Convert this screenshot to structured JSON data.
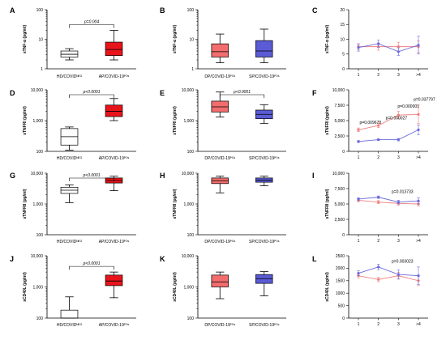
{
  "colors": {
    "hd": "#ffffff",
    "ap": "#e8141b",
    "dp": "#f26d6d",
    "sp": "#5b5bd6",
    "dp_line": "#f08080",
    "sp_line": "#6a6ae0"
  },
  "chart_data": [
    {
      "id": "A",
      "type": "box",
      "ylabel": "sTNF-α (pg/ml)",
      "yscale": "log",
      "ylim": [
        1,
        100
      ],
      "yticks": [
        1,
        10,
        100
      ],
      "ytick_labels": [
        "1",
        "10",
        "100"
      ],
      "categories": [
        "HD/COVIDᴺᴱᴳ",
        "AP/COVID-19ᴾᴼˢ"
      ],
      "boxes": [
        {
          "min": 2.0,
          "q1": 2.5,
          "median": 3.1,
          "q3": 4.0,
          "max": 4.8,
          "color_key": "hd"
        },
        {
          "min": 2.0,
          "q1": 2.8,
          "median": 4.5,
          "q3": 8.0,
          "max": 20.0,
          "color_key": "ap"
        }
      ],
      "bracket": {
        "label": "p=0.004"
      }
    },
    {
      "id": "B",
      "type": "box",
      "ylabel": "sTNF-α (pg/ml)",
      "yscale": "log",
      "ylim": [
        1,
        100
      ],
      "yticks": [
        1,
        10,
        100
      ],
      "ytick_labels": [
        "1",
        "10",
        "100"
      ],
      "categories": [
        "DP/COVID-19ᴾᴼˢ",
        "SP/COVID-19ᴾᴼˢ"
      ],
      "boxes": [
        {
          "min": 1.6,
          "q1": 2.5,
          "median": 3.8,
          "q3": 7.0,
          "max": 15.0,
          "color_key": "dp"
        },
        {
          "min": 1.6,
          "q1": 2.5,
          "median": 4.0,
          "q3": 9.0,
          "max": 22.0,
          "color_key": "sp"
        }
      ]
    },
    {
      "id": "C",
      "type": "line",
      "ylabel": "sTNF-α (pg/ml)",
      "yscale": "linear",
      "ylim": [
        0,
        20
      ],
      "yticks": [
        0,
        5,
        10,
        15,
        20
      ],
      "ytick_labels": [
        "0",
        "5",
        "10",
        "15",
        "20"
      ],
      "categories": [
        "1",
        "2",
        "3",
        ">4"
      ],
      "series": [
        {
          "values": [
            7.5,
            7.5,
            7.5,
            7.5
          ],
          "err": [
            1.0,
            1.2,
            1.5,
            2.0
          ],
          "color_key": "dp_line"
        },
        {
          "values": [
            7.2,
            8.5,
            5.8,
            8.0
          ],
          "err": [
            1.2,
            1.2,
            1.3,
            3.0
          ],
          "color_key": "sp_line"
        }
      ],
      "annotations": []
    },
    {
      "id": "D",
      "type": "box",
      "ylabel": "sTNFRI (pg/ml)",
      "yscale": "log",
      "ylim": [
        100,
        10000
      ],
      "yticks": [
        100,
        1000,
        10000
      ],
      "ytick_labels": [
        "100",
        "1,000",
        "10,000"
      ],
      "categories": [
        "HD/COVIDᴺᴱᴳ",
        "AP/COVID-19ᴾᴼˢ"
      ],
      "boxes": [
        {
          "min": 110,
          "q1": 160,
          "median": 300,
          "q3": 550,
          "max": 620,
          "color_key": "hd"
        },
        {
          "min": 1000,
          "q1": 1350,
          "median": 2000,
          "q3": 3200,
          "max": 5200,
          "color_key": "ap"
        }
      ],
      "bracket": {
        "label": "p<0.0001"
      }
    },
    {
      "id": "E",
      "type": "box",
      "ylabel": "sTNFRI (pg/ml)",
      "yscale": "log",
      "ylim": [
        100,
        10000
      ],
      "yticks": [
        100,
        1000,
        10000
      ],
      "ytick_labels": [
        "100",
        "1,000",
        "10,000"
      ],
      "categories": [
        "DP/COVID-19ᴾᴼˢ",
        "SP/COVID-19ᴾᴼˢ"
      ],
      "boxes": [
        {
          "min": 1300,
          "q1": 1900,
          "median": 2800,
          "q3": 4300,
          "max": 8500,
          "color_key": "dp"
        },
        {
          "min": 800,
          "q1": 1150,
          "median": 1600,
          "q3": 2200,
          "max": 3300,
          "color_key": "sp"
        }
      ],
      "bracket": {
        "label": "p<0.0001"
      }
    },
    {
      "id": "F",
      "type": "line",
      "ylabel": "sTNFRI (pg/ml)",
      "yscale": "linear",
      "ylim": [
        0,
        10000
      ],
      "yticks": [
        0,
        2500,
        5000,
        7500,
        10000
      ],
      "ytick_labels": [
        "0",
        "2,500",
        "5,000",
        "7,500",
        "10,000"
      ],
      "categories": [
        "1",
        "2",
        "3",
        ">4"
      ],
      "series": [
        {
          "values": [
            3500,
            4200,
            5900,
            6000
          ],
          "err": [
            300,
            350,
            600,
            1500
          ],
          "color_key": "dp_line"
        },
        {
          "values": [
            1600,
            1900,
            1900,
            3500
          ],
          "err": [
            150,
            150,
            200,
            800
          ],
          "color_key": "sp_line"
        }
      ],
      "annotations": [
        {
          "text": "p=0.009678",
          "x": 0.6,
          "y": 4500
        },
        {
          "text": "p=0.000027",
          "x": 1.9,
          "y": 5200
        },
        {
          "text": "p=0.000001",
          "x": 2.5,
          "y": 7100
        },
        {
          "text": "p=0.037797",
          "x": 3.3,
          "y": 8200
        }
      ]
    },
    {
      "id": "G",
      "type": "box",
      "ylabel": "sTNFRII (pg/ml)",
      "yscale": "log",
      "ylim": [
        100,
        10000
      ],
      "yticks": [
        100,
        1000,
        10000
      ],
      "ytick_labels": [
        "100",
        "1,000",
        "10,000"
      ],
      "categories": [
        "HD/COVIDᴺᴱᴳ",
        "AP/COVID-19ᴾᴼˢ"
      ],
      "boxes": [
        {
          "min": 1100,
          "q1": 2200,
          "median": 2800,
          "q3": 3500,
          "max": 4200,
          "color_key": "hd"
        },
        {
          "min": 2700,
          "q1": 4800,
          "median": 5800,
          "q3": 7000,
          "max": 8000,
          "color_key": "ap"
        }
      ],
      "bracket": {
        "label": "p<0.0001"
      }
    },
    {
      "id": "H",
      "type": "box",
      "ylabel": "sTNFRII (pg/ml)",
      "yscale": "log",
      "ylim": [
        100,
        10000
      ],
      "yticks": [
        100,
        1000,
        10000
      ],
      "ytick_labels": [
        "100",
        "1,000",
        "10,000"
      ],
      "categories": [
        "DP/COVID-19ᴾᴼˢ",
        "SP/COVID-19ᴾᴼˢ"
      ],
      "boxes": [
        {
          "min": 2300,
          "q1": 4600,
          "median": 5700,
          "q3": 7000,
          "max": 8000,
          "color_key": "dp"
        },
        {
          "min": 3900,
          "q1": 5100,
          "median": 6000,
          "q3": 7000,
          "max": 8000,
          "color_key": "sp"
        }
      ]
    },
    {
      "id": "I",
      "type": "line",
      "ylabel": "sTNFRII (pg/ml)",
      "yscale": "linear",
      "ylim": [
        0,
        10000
      ],
      "yticks": [
        0,
        2500,
        5000,
        7500,
        10000
      ],
      "ytick_labels": [
        "0",
        "2,500",
        "5,000",
        "7,500",
        "10,000"
      ],
      "categories": [
        "1",
        "2",
        "3",
        ">4"
      ],
      "series": [
        {
          "values": [
            5600,
            5300,
            5100,
            5000
          ],
          "err": [
            250,
            250,
            300,
            350
          ],
          "color_key": "dp_line"
        },
        {
          "values": [
            5800,
            6100,
            5300,
            5500
          ],
          "err": [
            200,
            200,
            300,
            500
          ],
          "color_key": "sp_line"
        }
      ],
      "annotations": [
        {
          "text": "p=0.013733",
          "x": 2.2,
          "y": 6800
        }
      ]
    },
    {
      "id": "J",
      "type": "box",
      "ylabel": "sCD40L (pg/ml)",
      "yscale": "log",
      "ylim": [
        100,
        10000
      ],
      "yticks": [
        100,
        1000,
        10000
      ],
      "ytick_labels": [
        "100",
        "1,000",
        "10,000"
      ],
      "categories": [
        "HD/COVIDᴺᴱᴳ",
        "AP/COVID-19ᴾᴼˢ"
      ],
      "boxes": [
        {
          "min": 100,
          "q1": 100,
          "median": 100,
          "q3": 180,
          "max": 480,
          "color_key": "hd"
        },
        {
          "min": 450,
          "q1": 1100,
          "median": 1550,
          "q3": 2400,
          "max": 3000,
          "color_key": "ap"
        }
      ],
      "bracket": {
        "label": "p<0.0001"
      }
    },
    {
      "id": "K",
      "type": "box",
      "ylabel": "sCD40L (pg/ml)",
      "yscale": "log",
      "ylim": [
        100,
        10000
      ],
      "yticks": [
        100,
        1000,
        10000
      ],
      "ytick_labels": [
        "100",
        "1,000",
        "10,000"
      ],
      "categories": [
        "DP/COVID-19ᴾᴼˢ",
        "SP/COVID-19ᴾᴼˢ"
      ],
      "boxes": [
        {
          "min": 420,
          "q1": 1000,
          "median": 1450,
          "q3": 2400,
          "max": 3000,
          "color_key": "dp"
        },
        {
          "min": 520,
          "q1": 1300,
          "median": 1850,
          "q3": 2500,
          "max": 3100,
          "color_key": "sp"
        }
      ]
    },
    {
      "id": "L",
      "type": "line",
      "ylabel": "sCD40L (pg/ml)",
      "yscale": "linear",
      "ylim": [
        0,
        2500
      ],
      "yticks": [
        0,
        500,
        1000,
        1500,
        2000,
        2500
      ],
      "ytick_labels": [
        "0",
        "500",
        "1000",
        "1500",
        "2000",
        "2500"
      ],
      "categories": [
        "1",
        "2",
        "3",
        ">4"
      ],
      "series": [
        {
          "values": [
            1700,
            1550,
            1700,
            1500
          ],
          "err": [
            90,
            90,
            140,
            200
          ],
          "color_key": "dp_line"
        },
        {
          "values": [
            1800,
            2050,
            1750,
            1700
          ],
          "err": [
            100,
            110,
            180,
            350
          ],
          "color_key": "sp_line"
        }
      ],
      "annotations": [
        {
          "text": "p=0.003023",
          "x": 2.2,
          "y": 2220
        }
      ]
    }
  ]
}
